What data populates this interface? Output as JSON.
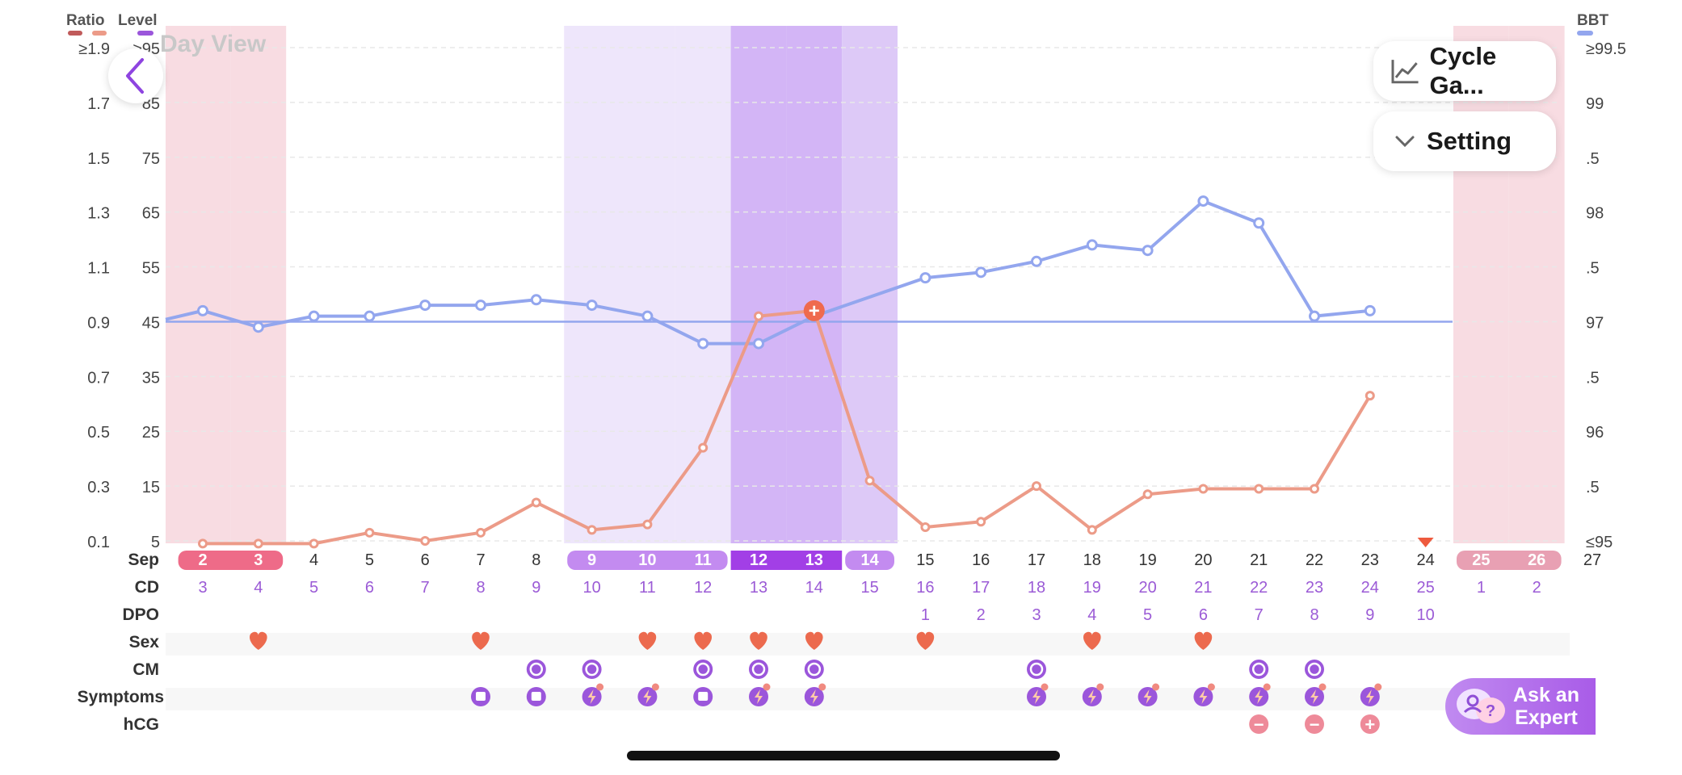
{
  "header": {
    "ratio_label": "Ratio",
    "level_label": "Level",
    "bbt_label": "BBT",
    "view_title": "Day View",
    "cycle_button_label": "Cycle Ga...",
    "setting_button_label": "Setting"
  },
  "axes": {
    "ratio_ticks": [
      "≥1.9",
      "1.7",
      "1.5",
      "1.3",
      "1.1",
      "0.9",
      "0.7",
      "0.5",
      "0.3",
      "0.1"
    ],
    "level_ticks": [
      "≥95",
      "85",
      "75",
      "65",
      "55",
      "45",
      "35",
      "25",
      "15",
      "5"
    ],
    "bbt_ticks": [
      "≥99.5",
      "99",
      ".5",
      "98",
      ".5",
      "97",
      ".5",
      "96",
      ".5",
      "≤95"
    ]
  },
  "row_labels": {
    "date": "Sep",
    "cd": "CD",
    "dpo": "DPO",
    "sex": "Sex",
    "cm": "CM",
    "symptoms": "Symptoms",
    "hcg": "hCG"
  },
  "days": [
    {
      "date": "2",
      "cd": "3",
      "dpo": "",
      "period": true
    },
    {
      "date": "3",
      "cd": "4",
      "dpo": "",
      "period": true,
      "sex": true
    },
    {
      "date": "4",
      "cd": "5",
      "dpo": ""
    },
    {
      "date": "5",
      "cd": "6",
      "dpo": ""
    },
    {
      "date": "6",
      "cd": "7",
      "dpo": ""
    },
    {
      "date": "7",
      "cd": "8",
      "dpo": "",
      "sex": true,
      "symptom": "pad"
    },
    {
      "date": "8",
      "cd": "9",
      "dpo": "",
      "cm": true,
      "symptom": "pad"
    },
    {
      "date": "9",
      "cd": "10",
      "dpo": "",
      "fertile": "light",
      "cm": true,
      "symptom": "bolt"
    },
    {
      "date": "10",
      "cd": "11",
      "dpo": "",
      "fertile": "light",
      "sex": true,
      "symptom": "bolt"
    },
    {
      "date": "11",
      "cd": "12",
      "dpo": "",
      "fertile": "light",
      "sex": true,
      "cm": true,
      "symptom": "pad"
    },
    {
      "date": "12",
      "cd": "13",
      "dpo": "",
      "fertile": "peak",
      "sex": true,
      "cm": true,
      "symptom": "bolt"
    },
    {
      "date": "13",
      "cd": "14",
      "dpo": "",
      "fertile": "peak",
      "sex": true,
      "cm": true,
      "symptom": "bolt"
    },
    {
      "date": "14",
      "cd": "15",
      "dpo": "",
      "fertile": "high"
    },
    {
      "date": "15",
      "cd": "16",
      "dpo": "1",
      "sex": true
    },
    {
      "date": "16",
      "cd": "17",
      "dpo": "2"
    },
    {
      "date": "17",
      "cd": "18",
      "dpo": "3",
      "cm": true,
      "symptom": "bolt"
    },
    {
      "date": "18",
      "cd": "19",
      "dpo": "4",
      "sex": true,
      "symptom": "bolt"
    },
    {
      "date": "19",
      "cd": "20",
      "dpo": "5",
      "symptom": "bolt"
    },
    {
      "date": "20",
      "cd": "21",
      "dpo": "6",
      "sex": true,
      "symptom": "bolt"
    },
    {
      "date": "21",
      "cd": "22",
      "dpo": "7",
      "cm": true,
      "symptom": "bolt",
      "hcg": "−"
    },
    {
      "date": "22",
      "cd": "23",
      "dpo": "8",
      "cm": true,
      "symptom": "bolt",
      "hcg": "−"
    },
    {
      "date": "23",
      "cd": "24",
      "dpo": "9",
      "symptom": "bolt",
      "hcg": "+"
    },
    {
      "date": "24",
      "cd": "25",
      "dpo": "10",
      "marker": true
    },
    {
      "date": "25",
      "cd": "1",
      "dpo": "",
      "period": true,
      "next": true
    },
    {
      "date": "26",
      "cd": "2",
      "dpo": "",
      "period": true,
      "next": true
    },
    {
      "date": "27",
      "cd": "",
      "dpo": ""
    }
  ],
  "chart_data": {
    "type": "line",
    "x_label": "Sep",
    "x": [
      "2",
      "3",
      "4",
      "5",
      "6",
      "7",
      "8",
      "9",
      "10",
      "11",
      "12",
      "13",
      "14",
      "15",
      "16",
      "17",
      "18",
      "19",
      "20",
      "21",
      "22",
      "23",
      "24"
    ],
    "series": [
      {
        "axis": "BBT",
        "color": "#93a6ee",
        "values": [
          97.1,
          96.95,
          97.05,
          97.05,
          97.15,
          97.15,
          97.2,
          97.15,
          97.05,
          96.8,
          96.8,
          97.05,
          null,
          97.4,
          97.45,
          97.55,
          97.7,
          97.65,
          98.1,
          97.9,
          97.05,
          97.1,
          null
        ]
      },
      {
        "axis": "Ratio",
        "color": "#ec9b88",
        "values": [
          0.09,
          0.09,
          0.09,
          0.13,
          0.1,
          0.13,
          0.24,
          0.14,
          0.16,
          0.44,
          0.92,
          0.94,
          0.32,
          0.15,
          0.17,
          0.3,
          0.14,
          0.27,
          0.29,
          0.29,
          0.29,
          0.63,
          null
        ]
      }
    ],
    "bbt_coverline": 97,
    "highlight_point": {
      "day": "13",
      "label": "+"
    },
    "ylim_ratio": [
      0.1,
      1.9
    ],
    "ylim_level": [
      5,
      95
    ],
    "ylim_bbt": [
      95,
      99.5
    ],
    "grid": true
  },
  "expert": {
    "line1": "Ask an",
    "line2": "Expert"
  },
  "colors": {
    "period": "#f8dce2",
    "period_pill": "#ee6b88",
    "next_period_pill": "#e8a0b3",
    "fertile_light": "#eee6fb",
    "fertile_high": "#ddc9f7",
    "fertile_peak": "#d3b5f6",
    "fertile_pill_light": "#c38bf0",
    "fertile_pill_peak": "#a23fe6",
    "bbt": "#93a6ee",
    "ratio": "#ec9b88",
    "heart": "#ec6a4e",
    "purple_icon": "#9b56db",
    "hcg": "#ee8a99",
    "cd_text": "#9b5bd6"
  }
}
